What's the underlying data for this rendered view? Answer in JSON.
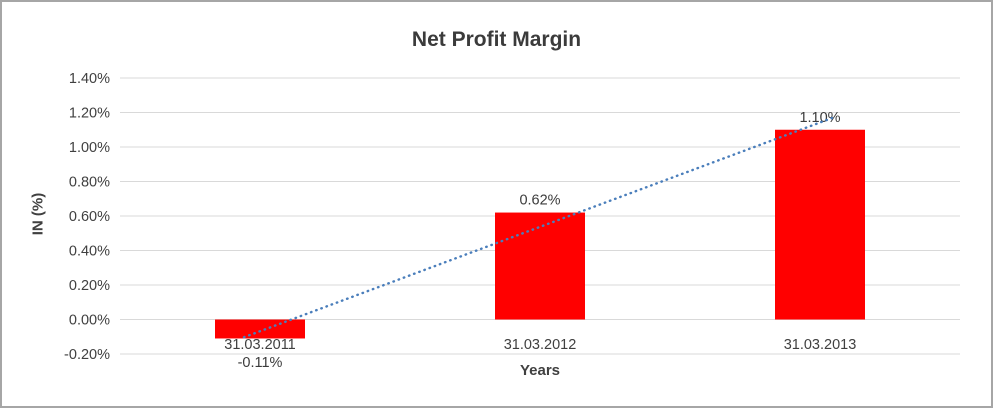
{
  "chart_data": {
    "type": "bar",
    "title": "Net Profit Margin",
    "xlabel": "Years",
    "ylabel": "IN (%)",
    "categories": [
      "31.03.2011",
      "31.03.2012",
      "31.03.2013"
    ],
    "values": [
      -0.11,
      0.62,
      1.1
    ],
    "value_labels": [
      "-0.11%",
      "0.62%",
      "1.10%"
    ],
    "ylim": [
      -0.2,
      1.4
    ],
    "y_ticks": [
      1.4,
      1.2,
      1.0,
      0.8,
      0.6,
      0.4,
      0.2,
      0.0,
      -0.2
    ],
    "y_tick_labels": [
      "1.40%",
      "1.20%",
      "1.00%",
      "0.80%",
      "0.60%",
      "0.40%",
      "0.20%",
      "0.00%",
      "-0.20%"
    ],
    "bar_color": "#ff0000",
    "gridline_color": "#d9d9d9",
    "grid": true,
    "legend": "none",
    "trendline": {
      "type": "linear",
      "style": "dotted",
      "color": "#4a7ebb",
      "x_start": 0,
      "x_end": 2,
      "y_start": -0.068,
      "y_end": 1.142
    }
  }
}
